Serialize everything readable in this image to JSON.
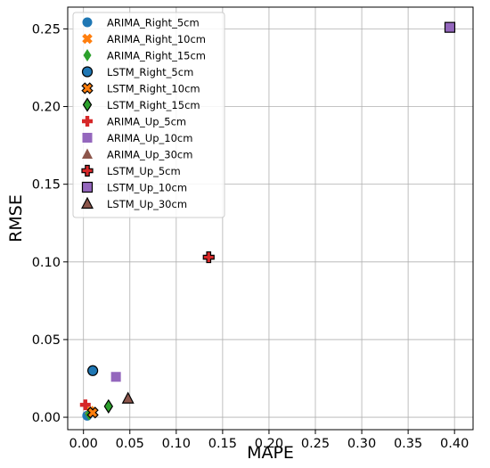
{
  "chart_data": {
    "type": "scatter",
    "xlabel": "MAPE",
    "ylabel": "RMSE",
    "xlim": [
      -0.017,
      0.42
    ],
    "ylim": [
      -0.008,
      0.264
    ],
    "xticks": [
      0.0,
      0.05,
      0.1,
      0.15,
      0.2,
      0.25,
      0.3,
      0.35,
      0.4
    ],
    "xtick_labels": [
      "0.00",
      "0.05",
      "0.10",
      "0.15",
      "0.20",
      "0.25",
      "0.30",
      "0.35",
      "0.40"
    ],
    "yticks": [
      0.0,
      0.05,
      0.1,
      0.15,
      0.2,
      0.25
    ],
    "ytick_labels": [
      "0.00",
      "0.05",
      "0.10",
      "0.15",
      "0.20",
      "0.25"
    ],
    "grid": true,
    "legend_position": "top-left",
    "series": [
      {
        "name": "ARIMA_Right_5cm",
        "marker": "circle",
        "color": "#1f77b4",
        "edge": "none",
        "x": [
          0.004
        ],
        "y": [
          0.001
        ]
      },
      {
        "name": "ARIMA_Right_10cm",
        "marker": "x",
        "color": "#ff7f0e",
        "edge": "none",
        "x": [
          0.007
        ],
        "y": [
          0.004
        ]
      },
      {
        "name": "ARIMA_Right_15cm",
        "marker": "diamond",
        "color": "#2ca02c",
        "edge": "none",
        "x": [
          0.006
        ],
        "y": [
          0.002
        ]
      },
      {
        "name": "LSTM_Right_5cm",
        "marker": "circle",
        "color": "#1f77b4",
        "edge": "#000000",
        "x": [
          0.01
        ],
        "y": [
          0.03
        ]
      },
      {
        "name": "LSTM_Right_10cm",
        "marker": "x",
        "color": "#ff7f0e",
        "edge": "#000000",
        "x": [
          0.01
        ],
        "y": [
          0.003
        ]
      },
      {
        "name": "LSTM_Right_15cm",
        "marker": "diamond",
        "color": "#2ca02c",
        "edge": "#000000",
        "x": [
          0.027
        ],
        "y": [
          0.007
        ]
      },
      {
        "name": "ARIMA_Up_5cm",
        "marker": "plus",
        "color": "#d62728",
        "edge": "none",
        "x": [
          0.002
        ],
        "y": [
          0.008
        ]
      },
      {
        "name": "ARIMA_Up_10cm",
        "marker": "square",
        "color": "#9467bd",
        "edge": "none",
        "x": [
          0.035
        ],
        "y": [
          0.026
        ]
      },
      {
        "name": "ARIMA_Up_30cm",
        "marker": "triangle",
        "color": "#8c564b",
        "edge": "none",
        "x": [
          0.048
        ],
        "y": [
          0.012
        ]
      },
      {
        "name": "LSTM_Up_5cm",
        "marker": "plus",
        "color": "#d62728",
        "edge": "#000000",
        "x": [
          0.135
        ],
        "y": [
          0.103
        ]
      },
      {
        "name": "LSTM_Up_10cm",
        "marker": "square",
        "color": "#9467bd",
        "edge": "#000000",
        "x": [
          0.395
        ],
        "y": [
          0.251
        ]
      },
      {
        "name": "LSTM_Up_30cm",
        "marker": "triangle",
        "color": "#8c564b",
        "edge": "#000000",
        "x": [
          0.048
        ],
        "y": [
          0.012
        ]
      }
    ]
  }
}
